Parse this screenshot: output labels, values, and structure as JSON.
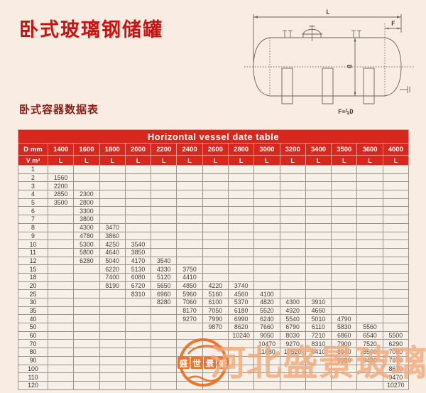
{
  "page": {
    "title": "卧式玻璃钢储罐",
    "subtitle": "卧式容器数据表"
  },
  "diagram": {
    "labels": {
      "length": "L",
      "head": "F",
      "diameter": "D",
      "formula": "F=¼D"
    }
  },
  "watermark": {
    "logo_chars": [
      "盛",
      "世",
      "景",
      "盛"
    ],
    "text": "河北盛景玻璃钢",
    "color": "#ea7a30"
  },
  "table": {
    "title": "Horizontal vessel date table",
    "d_header_label": "D mm",
    "v_header_label": "V m³",
    "unit_label": "L",
    "header_color": "#d8281e",
    "diameters": [
      "1400",
      "1600",
      "1800",
      "2000",
      "2200",
      "2400",
      "2600",
      "2800",
      "3000",
      "3200",
      "3400",
      "3500",
      "3600",
      "4000"
    ],
    "rows": [
      {
        "v": "1",
        "values": [
          "",
          "",
          "",
          "",
          "",
          "",
          "",
          "",
          "",
          "",
          "",
          "",
          "",
          ""
        ]
      },
      {
        "v": "2",
        "values": [
          "1560",
          "",
          "",
          "",
          "",
          "",
          "",
          "",
          "",
          "",
          "",
          "",
          "",
          ""
        ]
      },
      {
        "v": "3",
        "values": [
          "2200",
          "",
          "",
          "",
          "",
          "",
          "",
          "",
          "",
          "",
          "",
          "",
          "",
          ""
        ]
      },
      {
        "v": "4",
        "values": [
          "2850",
          "2300",
          "",
          "",
          "",
          "",
          "",
          "",
          "",
          "",
          "",
          "",
          "",
          ""
        ]
      },
      {
        "v": "5",
        "values": [
          "3500",
          "2800",
          "",
          "",
          "",
          "",
          "",
          "",
          "",
          "",
          "",
          "",
          "",
          ""
        ]
      },
      {
        "v": "6",
        "values": [
          "",
          "3300",
          "",
          "",
          "",
          "",
          "",
          "",
          "",
          "",
          "",
          "",
          "",
          ""
        ]
      },
      {
        "v": "7",
        "values": [
          "",
          "3800",
          "",
          "",
          "",
          "",
          "",
          "",
          "",
          "",
          "",
          "",
          "",
          ""
        ]
      },
      {
        "v": "8",
        "values": [
          "",
          "4300",
          "3470",
          "",
          "",
          "",
          "",
          "",
          "",
          "",
          "",
          "",
          "",
          ""
        ]
      },
      {
        "v": "9",
        "values": [
          "",
          "4780",
          "3860",
          "",
          "",
          "",
          "",
          "",
          "",
          "",
          "",
          "",
          "",
          ""
        ]
      },
      {
        "v": "10",
        "values": [
          "",
          "5300",
          "4250",
          "3540",
          "",
          "",
          "",
          "",
          "",
          "",
          "",
          "",
          "",
          ""
        ]
      },
      {
        "v": "11",
        "values": [
          "",
          "5800",
          "4640",
          "3850",
          "",
          "",
          "",
          "",
          "",
          "",
          "",
          "",
          "",
          ""
        ]
      },
      {
        "v": "12",
        "values": [
          "",
          "6280",
          "5040",
          "4170",
          "3540",
          "",
          "",
          "",
          "",
          "",
          "",
          "",
          "",
          ""
        ]
      },
      {
        "v": "15",
        "values": [
          "",
          "",
          "6220",
          "5130",
          "4330",
          "3750",
          "",
          "",
          "",
          "",
          "",
          "",
          "",
          ""
        ]
      },
      {
        "v": "18",
        "values": [
          "",
          "",
          "7400",
          "6080",
          "5120",
          "4410",
          "",
          "",
          "",
          "",
          "",
          "",
          "",
          ""
        ]
      },
      {
        "v": "20",
        "values": [
          "",
          "",
          "8190",
          "6720",
          "5650",
          "4850",
          "4220",
          "3740",
          "",
          "",
          "",
          "",
          "",
          ""
        ]
      },
      {
        "v": "25",
        "values": [
          "",
          "",
          "",
          "8310",
          "6960",
          "5960",
          "5160",
          "4560",
          "4100",
          "",
          "",
          "",
          "",
          ""
        ]
      },
      {
        "v": "30",
        "values": [
          "",
          "",
          "",
          "",
          "8280",
          "7060",
          "6100",
          "5370",
          "4820",
          "4300",
          "3910",
          "",
          "",
          ""
        ]
      },
      {
        "v": "35",
        "values": [
          "",
          "",
          "",
          "",
          "",
          "8170",
          "7050",
          "6180",
          "5520",
          "4920",
          "4660",
          "",
          "",
          ""
        ]
      },
      {
        "v": "40",
        "values": [
          "",
          "",
          "",
          "",
          "",
          "9270",
          "7990",
          "6990",
          "6240",
          "5540",
          "5010",
          "4790",
          "",
          ""
        ]
      },
      {
        "v": "50",
        "values": [
          "",
          "",
          "",
          "",
          "",
          "",
          "9870",
          "8620",
          "7660",
          "6790",
          "6110",
          "5830",
          "5560",
          ""
        ]
      },
      {
        "v": "60",
        "values": [
          "",
          "",
          "",
          "",
          "",
          "",
          "",
          "10240",
          "9050",
          "8030",
          "7210",
          "6860",
          "6540",
          "5500"
        ]
      },
      {
        "v": "70",
        "values": [
          "",
          "",
          "",
          "",
          "",
          "",
          "",
          "",
          "10470",
          "9270",
          "8310",
          "7900",
          "7520",
          "6290"
        ]
      },
      {
        "v": "80",
        "values": [
          "",
          "",
          "",
          "",
          "",
          "",
          "",
          "",
          "11880",
          "10520",
          "9410",
          "8940",
          "8500",
          "7090"
        ]
      },
      {
        "v": "90",
        "values": [
          "",
          "",
          "",
          "",
          "",
          "",
          "",
          "",
          "",
          "",
          "",
          "9980",
          "9480",
          "7870"
        ]
      },
      {
        "v": "100",
        "values": [
          "",
          "",
          "",
          "",
          "",
          "",
          "",
          "",
          "",
          "",
          "",
          "",
          "",
          "8670"
        ]
      },
      {
        "v": "110",
        "values": [
          "",
          "",
          "",
          "",
          "",
          "",
          "",
          "",
          "",
          "",
          "",
          "",
          "",
          "9470"
        ]
      },
      {
        "v": "120",
        "values": [
          "",
          "",
          "",
          "",
          "",
          "",
          "",
          "",
          "",
          "",
          "",
          "",
          "",
          "10270"
        ]
      }
    ]
  }
}
